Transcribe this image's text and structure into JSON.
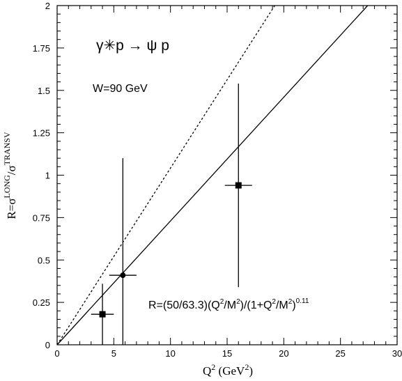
{
  "chart_data": {
    "type": "scatter",
    "xlim": [
      0,
      30
    ],
    "ylim": [
      0,
      2
    ],
    "x_ticks": [
      0,
      5,
      10,
      15,
      20,
      25,
      30
    ],
    "x_tick_labels": [
      "0",
      "5",
      "10",
      "15",
      "20",
      "25",
      "30"
    ],
    "y_ticks": [
      0,
      0.25,
      0.5,
      0.75,
      1,
      1.25,
      1.5,
      1.75,
      2
    ],
    "y_tick_labels": [
      "0",
      "0.25",
      "0.5",
      "0.75",
      "1",
      "1.25",
      "1.5",
      "1.75",
      "2"
    ],
    "xlabel": {
      "base": "Q",
      "sup": "2",
      "unit_pre": " (GeV",
      "unit_sup": "2",
      "unit_post": ")"
    },
    "ylabel": {
      "prefix": "R=σ",
      "sup1": "LONG",
      "mid": "/σ",
      "sup2": "TRANSV"
    },
    "grid": false,
    "points": [
      {
        "x": 4.0,
        "y": 0.18,
        "xerr": 1.0,
        "yerr_low": 0.18,
        "yerr_high": 0.18,
        "marker": "square"
      },
      {
        "x": 5.8,
        "y": 0.41,
        "xerr": 1.2,
        "yerr_low": 0.41,
        "yerr_high": 0.69,
        "marker": "circle"
      },
      {
        "x": 16.0,
        "y": 0.94,
        "xerr": 1.2,
        "yerr_low": 0.6,
        "yerr_high": 0.6,
        "marker": "square"
      }
    ],
    "lines": [
      {
        "style": "solid",
        "x": [
          0,
          27.4
        ],
        "y": [
          0,
          2.0
        ]
      },
      {
        "style": "dotted",
        "x": [
          0,
          19.2
        ],
        "y": [
          0,
          2.0
        ]
      }
    ],
    "annotations": {
      "process": "γ✳p → ψ p",
      "energy": "W=90 GeV",
      "formula": {
        "p1": "R=(50/63.3)(Q",
        "s1": "2",
        "p2": "/M",
        "s2": "2",
        "p3": ")/(1+Q",
        "s3": "2",
        "p4": "/M",
        "s4": "2",
        "p5": ")",
        "s5": "0.11"
      }
    },
    "colors": {
      "axes": "#000000",
      "data": "#000000"
    }
  }
}
